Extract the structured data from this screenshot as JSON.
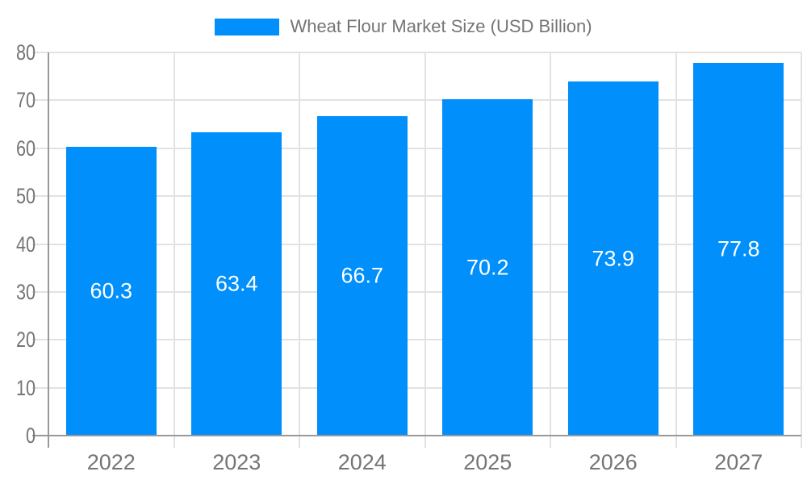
{
  "legend": {
    "label": "Wheat Flour Market Size (USD Billion)"
  },
  "chart_data": {
    "type": "bar",
    "title": "Wheat Flour Market Size (USD Billion)",
    "categories": [
      "2022",
      "2023",
      "2024",
      "2025",
      "2026",
      "2027"
    ],
    "series": [
      {
        "name": "Wheat Flour Market Size (USD Billion)",
        "values": [
          60.3,
          63.4,
          66.7,
          70.2,
          73.9,
          77.8
        ]
      }
    ],
    "bar_value_labels": [
      "60.3",
      "63.4",
      "66.7",
      "70.2",
      "73.9",
      "77.8"
    ],
    "xlabel": "",
    "ylabel": "",
    "ylim": [
      0,
      80
    ],
    "yticks": [
      0,
      10,
      20,
      30,
      40,
      50,
      60,
      70,
      80
    ],
    "grid": true,
    "legend_position": "top-center",
    "value_labels_inside_bars": true
  },
  "colors": {
    "bar_fill": "#008ffb",
    "bar_value_label": "#ffffff",
    "axis_text": "#757575",
    "grid_line": "#e2e2e2",
    "axis_line": "#999999",
    "background": "#ffffff"
  }
}
